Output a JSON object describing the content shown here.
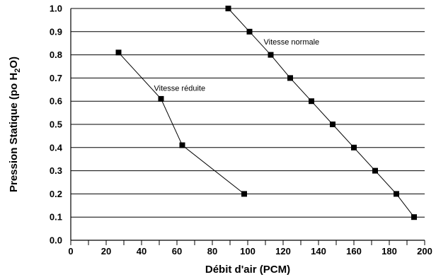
{
  "chart_data": {
    "type": "line",
    "title": "",
    "xlabel": "Débit d'air (PCM)",
    "ylabel_parts": {
      "before": "Pression Statique (po H",
      "subscript": "2",
      "after": "O)"
    },
    "xlim": [
      0,
      200
    ],
    "ylim": [
      0.0,
      1.0
    ],
    "x_ticks": [
      "0",
      "20",
      "40",
      "60",
      "80",
      "100",
      "120",
      "140",
      "160",
      "180",
      "200"
    ],
    "y_ticks": [
      "0.0",
      "0.1",
      "0.2",
      "0.3",
      "0.4",
      "0.5",
      "0.6",
      "0.7",
      "0.8",
      "0.9",
      "1.0"
    ],
    "grid": "horizontal",
    "series": [
      {
        "name": "Vitesse normale",
        "x": [
          89,
          101,
          113,
          124,
          136,
          148,
          160,
          172,
          184,
          194
        ],
        "y": [
          1.0,
          0.9,
          0.8,
          0.7,
          0.6,
          0.5,
          0.4,
          0.3,
          0.2,
          0.1
        ]
      },
      {
        "name": "Vitesse réduite",
        "x": [
          27,
          51,
          63,
          98
        ],
        "y": [
          0.81,
          0.61,
          0.41,
          0.2
        ]
      }
    ],
    "annotations": [
      {
        "text": "Vitesse normale",
        "series": 0
      },
      {
        "text": "Vitesse réduite",
        "series": 1
      }
    ]
  }
}
